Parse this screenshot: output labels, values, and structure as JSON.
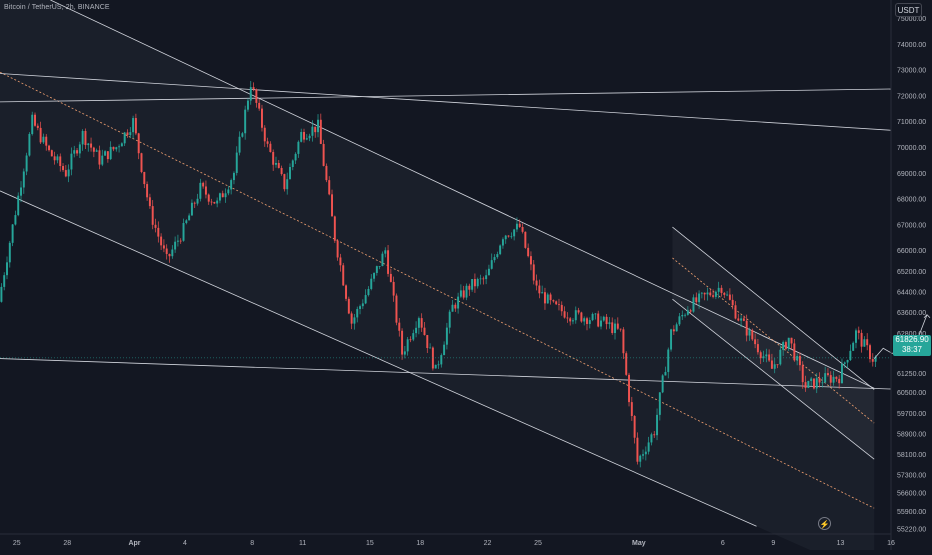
{
  "header": {
    "title": "Bitcoin / TetherUS, 2h, BINANCE",
    "currency": "USDT"
  },
  "price_tag": {
    "price": "61826.90",
    "countdown": "38:37",
    "color": "#26a69a"
  },
  "icons": {
    "replay": "lightning-icon"
  },
  "colors": {
    "background": "#131722",
    "up": "#26a69a",
    "down": "#ef5350",
    "trendline": "#d1d4dc",
    "midline": "#f0a070",
    "axis_text": "#b2b5be"
  },
  "chart_data": {
    "type": "candlestick",
    "symbol": "BTCUSDT",
    "exchange": "BINANCE",
    "interval": "2h",
    "y_axis": {
      "side": "right",
      "ylim": [
        55000,
        75700
      ],
      "ticks": [
        75000,
        74000,
        73000,
        72000,
        71000,
        70000,
        69000,
        68000,
        67000,
        66000,
        65200,
        64400,
        63600,
        62800,
        61250,
        60500,
        59700,
        58900,
        58100,
        57300,
        56600,
        55900,
        55220
      ],
      "tick_labels": [
        "75000.00",
        "74000.00",
        "73000.00",
        "72000.00",
        "71000.00",
        "70000.00",
        "69000.00",
        "68000.00",
        "67000.00",
        "66000.00",
        "65200.00",
        "64400.00",
        "63600.00",
        "62800.00",
        "61250.00",
        "60500.00",
        "59700.00",
        "58900.00",
        "58100.00",
        "57300.00",
        "56600.00",
        "55900.00",
        "55220.00"
      ]
    },
    "x_axis": {
      "start": "2024-03-24",
      "end": "2024-05-16",
      "tick_dates": [
        "2024-03-25",
        "2024-03-28",
        "2024-04-01",
        "2024-04-04",
        "2024-04-08",
        "2024-04-11",
        "2024-04-15",
        "2024-04-18",
        "2024-04-22",
        "2024-04-25",
        "2024-05-01",
        "2024-05-06",
        "2024-05-09",
        "2024-05-13",
        "2024-05-16"
      ],
      "tick_labels": [
        "25",
        "28",
        "Apr",
        "4",
        "8",
        "11",
        "15",
        "18",
        "22",
        "25",
        "May",
        "6",
        "9",
        "13",
        "16"
      ]
    },
    "last_price": 61826.9,
    "price_series": [
      {
        "date": "2024-03-24",
        "close": 64000
      },
      {
        "date": "2024-03-25",
        "close": 67500
      },
      {
        "date": "2024-03-26",
        "close": 71000
      },
      {
        "date": "2024-03-27",
        "close": 69800
      },
      {
        "date": "2024-03-28",
        "close": 69000
      },
      {
        "date": "2024-03-29",
        "close": 70500
      },
      {
        "date": "2024-03-30",
        "close": 69500
      },
      {
        "date": "2024-03-31",
        "close": 70000
      },
      {
        "date": "2024-04-01",
        "close": 71000
      },
      {
        "date": "2024-04-02",
        "close": 67500
      },
      {
        "date": "2024-04-03",
        "close": 65600
      },
      {
        "date": "2024-04-04",
        "close": 66800
      },
      {
        "date": "2024-04-05",
        "close": 68400
      },
      {
        "date": "2024-04-06",
        "close": 67800
      },
      {
        "date": "2024-04-07",
        "close": 69000
      },
      {
        "date": "2024-04-08",
        "close": 72500
      },
      {
        "date": "2024-04-09",
        "close": 70000
      },
      {
        "date": "2024-04-10",
        "close": 68500
      },
      {
        "date": "2024-04-11",
        "close": 70500
      },
      {
        "date": "2024-04-12",
        "close": 70800
      },
      {
        "date": "2024-04-13",
        "close": 66500
      },
      {
        "date": "2024-04-14",
        "close": 63200
      },
      {
        "date": "2024-04-15",
        "close": 64500
      },
      {
        "date": "2024-04-16",
        "close": 66000
      },
      {
        "date": "2024-04-17",
        "close": 62000
      },
      {
        "date": "2024-04-18",
        "close": 63500
      },
      {
        "date": "2024-04-19",
        "close": 61300
      },
      {
        "date": "2024-04-20",
        "close": 63800
      },
      {
        "date": "2024-04-21",
        "close": 64600
      },
      {
        "date": "2024-04-22",
        "close": 64900
      },
      {
        "date": "2024-04-23",
        "close": 66600
      },
      {
        "date": "2024-04-24",
        "close": 66900
      },
      {
        "date": "2024-04-25",
        "close": 64500
      },
      {
        "date": "2024-04-26",
        "close": 63800
      },
      {
        "date": "2024-04-27",
        "close": 63500
      },
      {
        "date": "2024-04-28",
        "close": 63400
      },
      {
        "date": "2024-04-29",
        "close": 63200
      },
      {
        "date": "2024-04-30",
        "close": 62800
      },
      {
        "date": "2024-05-01",
        "close": 57800
      },
      {
        "date": "2024-05-02",
        "close": 59000
      },
      {
        "date": "2024-05-03",
        "close": 62800
      },
      {
        "date": "2024-05-04",
        "close": 63800
      },
      {
        "date": "2024-05-05",
        "close": 64200
      },
      {
        "date": "2024-05-06",
        "close": 64600
      },
      {
        "date": "2024-05-07",
        "close": 63400
      },
      {
        "date": "2024-05-08",
        "close": 62400
      },
      {
        "date": "2024-05-09",
        "close": 61400
      },
      {
        "date": "2024-05-10",
        "close": 62600
      },
      {
        "date": "2024-05-11",
        "close": 60700
      },
      {
        "date": "2024-05-12",
        "close": 61000
      },
      {
        "date": "2024-05-13",
        "close": 61100
      },
      {
        "date": "2024-05-14",
        "close": 62800
      },
      {
        "date": "2024-05-15",
        "close": 61800
      }
    ],
    "channels": [
      {
        "upper": [
          [
            "2024-03-27",
            75700
          ],
          [
            "2024-05-15",
            60650
          ]
        ],
        "lower": [
          [
            "2024-03-24",
            68300
          ],
          [
            "2024-05-08",
            55300
          ]
        ],
        "midline": [
          [
            "2024-03-24",
            72900
          ],
          [
            "2024-05-15",
            56000
          ]
        ]
      },
      {
        "upper": [
          [
            "2024-05-03",
            66900
          ],
          [
            "2024-05-15",
            60600
          ]
        ],
        "lower": [
          [
            "2024-05-03",
            64100
          ],
          [
            "2024-05-15",
            57900
          ]
        ],
        "midline": [
          [
            "2024-05-03",
            65700
          ],
          [
            "2024-05-15",
            59300
          ]
        ]
      }
    ],
    "horizontal_lines": [
      {
        "from": [
          "2024-03-24",
          71750
        ],
        "to": [
          "2024-05-16",
          72250
        ]
      },
      {
        "from": [
          "2024-03-24",
          72850
        ],
        "to": [
          "2024-05-16",
          70650
        ]
      },
      {
        "from": [
          "2024-03-24",
          61800
        ],
        "to": [
          "2024-05-16",
          60620
        ]
      }
    ],
    "projection": [
      [
        "2024-05-15",
        61800
      ],
      [
        "2024-05-15",
        62200
      ],
      [
        "2024-05-15",
        62000
      ],
      [
        "2024-05-16",
        62600
      ],
      [
        "2024-05-16",
        63500
      ]
    ],
    "grid": false,
    "legend": "none"
  }
}
